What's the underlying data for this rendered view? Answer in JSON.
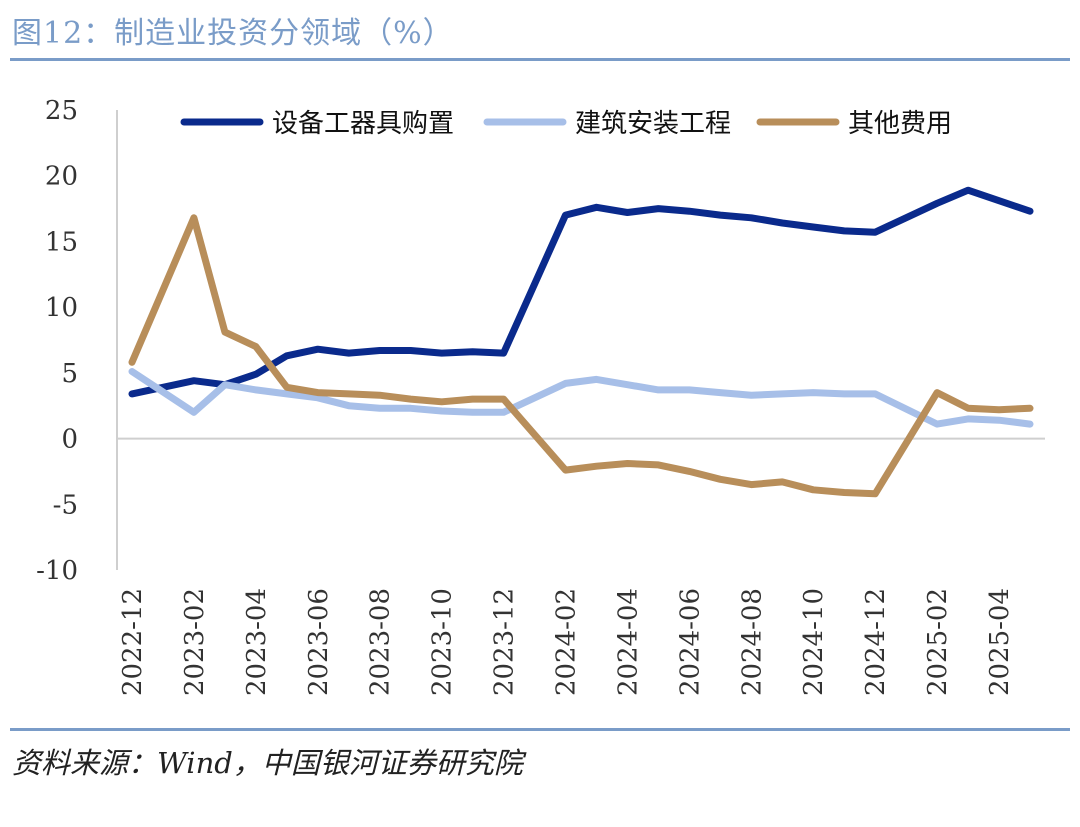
{
  "title": "图12：制造业投资分领域（%）",
  "source": "资料来源：Wind，中国银河证券研究院",
  "chart_data": {
    "type": "line",
    "title": "",
    "xlabel": "",
    "ylabel": "",
    "ylim": [
      -10,
      25
    ],
    "yticks": [
      25,
      20,
      15,
      10,
      5,
      0,
      -5,
      -10
    ],
    "grid": false,
    "legend_position": "top",
    "x": [
      "2022-12",
      "2023-01",
      "2023-02",
      "2023-03",
      "2023-04",
      "2023-05",
      "2023-06",
      "2023-07",
      "2023-08",
      "2023-09",
      "2023-10",
      "2023-11",
      "2023-12",
      "2024-01",
      "2024-02",
      "2024-03",
      "2024-04",
      "2024-05",
      "2024-06",
      "2024-07",
      "2024-08",
      "2024-09",
      "2024-10",
      "2024-11",
      "2024-12",
      "2025-01",
      "2025-02",
      "2025-03",
      "2025-04",
      "2025-05"
    ],
    "xtick_labels": [
      "2022-12",
      "2023-02",
      "2023-04",
      "2023-06",
      "2023-08",
      "2023-10",
      "2023-12",
      "2024-02",
      "2024-04",
      "2024-06",
      "2024-08",
      "2024-10",
      "2024-12",
      "2025-02",
      "2025-04"
    ],
    "series": [
      {
        "name": "设备工器具购置",
        "color": "#0a2a8c",
        "values": [
          3.4,
          null,
          4.4,
          4.1,
          4.9,
          6.3,
          6.8,
          6.5,
          6.7,
          6.7,
          6.5,
          6.6,
          6.5,
          null,
          17.0,
          17.6,
          17.2,
          17.5,
          17.3,
          17.0,
          16.8,
          16.4,
          16.1,
          15.8,
          15.7,
          null,
          17.9,
          18.9,
          18.1,
          17.3
        ]
      },
      {
        "name": "建筑安装工程",
        "color": "#a7bfe8",
        "values": [
          5.1,
          null,
          2.0,
          4.1,
          3.7,
          3.4,
          3.1,
          2.5,
          2.3,
          2.3,
          2.1,
          2.0,
          2.0,
          null,
          4.2,
          4.5,
          4.1,
          3.7,
          3.7,
          3.5,
          3.3,
          3.4,
          3.5,
          3.4,
          3.4,
          null,
          1.1,
          1.5,
          1.4,
          1.1
        ]
      },
      {
        "name": "其他费用",
        "color": "#b88e5a",
        "values": [
          5.8,
          null,
          16.8,
          8.1,
          7.0,
          3.9,
          3.5,
          3.4,
          3.3,
          3.0,
          2.8,
          3.0,
          3.0,
          null,
          -2.4,
          -2.1,
          -1.9,
          -2.0,
          -2.5,
          -3.1,
          -3.5,
          -3.3,
          -3.9,
          -4.1,
          -4.2,
          null,
          3.5,
          2.3,
          2.2,
          2.3
        ]
      }
    ]
  }
}
